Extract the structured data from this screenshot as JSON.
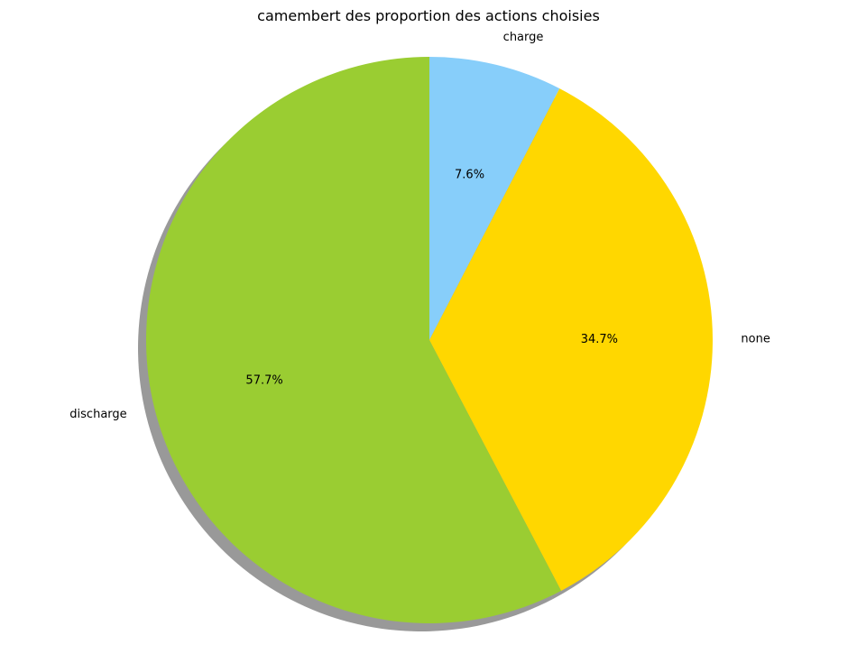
{
  "chart_data": {
    "type": "pie",
    "title": "camembert des proportion des actions choisies",
    "slices": [
      {
        "label": "charge",
        "value": 7.6,
        "pct_label": "7.6%",
        "color": "#87CEFA"
      },
      {
        "label": "none",
        "value": 34.7,
        "pct_label": "34.7%",
        "color": "#FFD700"
      },
      {
        "label": "discharge",
        "value": 57.7,
        "pct_label": "57.7%",
        "color": "#9ACD32"
      }
    ],
    "start_angle_deg": 90,
    "direction": "clockwise",
    "shadow": true
  }
}
